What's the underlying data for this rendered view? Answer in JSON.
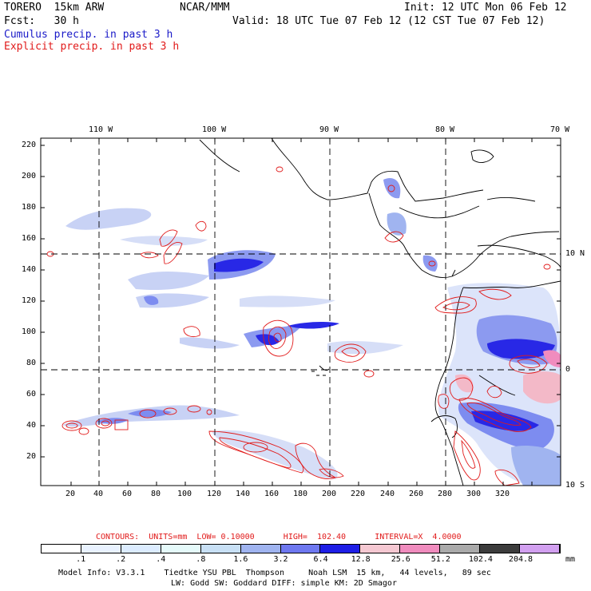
{
  "header": {
    "model": "TORERO  15km ARW",
    "org": "NCAR/MMM",
    "init": "Init: 12 UTC Mon 06 Feb 12",
    "fcst": "Fcst:   30 h",
    "valid": "Valid: 18 UTC Tue 07 Feb 12 (12 CST Tue 07 Feb 12)",
    "cumulus": "Cumulus precip. in past 3 h",
    "explicit": "Explicit precip. in past 3 h"
  },
  "map": {
    "lon_labels": [
      "110 W",
      "100 W",
      "90 W",
      "80 W",
      "70 W"
    ],
    "lat_labels": [
      "10 N",
      "0",
      "10 S"
    ],
    "x_ticks": [
      "20",
      "40",
      "60",
      "80",
      "100",
      "120",
      "140",
      "160",
      "180",
      "200",
      "220",
      "240",
      "260",
      "280",
      "300",
      "320"
    ],
    "y_ticks": [
      "220",
      "200",
      "180",
      "160",
      "140",
      "120",
      "100",
      "80",
      "60",
      "40",
      "20"
    ],
    "colors": {
      "land_line": "#000000",
      "cumulus_light": "#c8d2f5",
      "cumulus_mid": "#7d8cf0",
      "cumulus_dark": "#2828e6",
      "explicit_contour": "#e11a1a",
      "pink": "#f3b9c8"
    }
  },
  "contours_info": "CONTOURS:  UNITS=mm  LOW= 0.10000      HIGH=  102.40      INTERVAL=X  4.0000",
  "legend": {
    "labels": [
      ".1",
      ".2",
      ".4",
      ".8",
      "1.6",
      "3.2",
      "6.4",
      "12.8",
      "25.6",
      "51.2",
      "102.4",
      "204.8"
    ],
    "unit": "mm",
    "colors": [
      "#ffffff",
      "#e9f2ff",
      "#dcecff",
      "#e5fafa",
      "#c8e0f5",
      "#a0b4f0",
      "#6e78f0",
      "#1e1ee6",
      "#f5c8d2",
      "#f08cbe",
      "#aaaaaa",
      "#3c3c3c",
      "#d2a0f0"
    ]
  },
  "footer": {
    "line1": "Model Info: V3.3.1    Tiedtke YSU PBL  Thompson     Noah LSM  15 km,   44 levels,   89 sec",
    "line2": "LW: Godd SW: Goddard DIFF: simple KM: 2D Smagor"
  }
}
